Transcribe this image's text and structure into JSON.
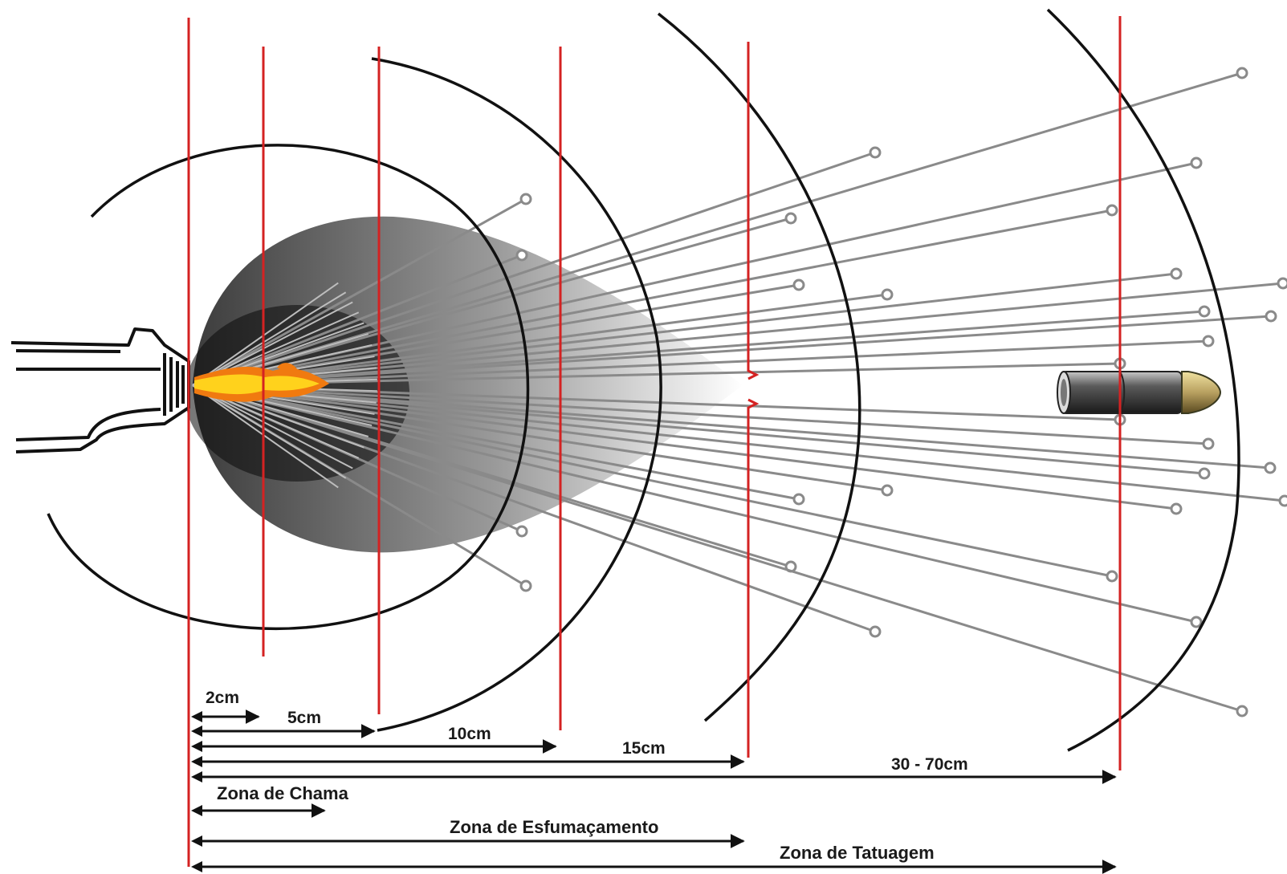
{
  "colors": {
    "background": "#ffffff",
    "distance_marker": "#d42222",
    "arc": "#111111",
    "particle": "#8a8a8a",
    "flame_yellow": "#ffd21c",
    "flame_orange": "#f07a10",
    "bullet_tip": "#b8a060",
    "bullet_casing": "#505050"
  },
  "distances": [
    {
      "label": "2cm"
    },
    {
      "label": "5cm"
    },
    {
      "label": "10cm"
    },
    {
      "label": "15cm"
    },
    {
      "label": "30 - 70cm"
    }
  ],
  "zones": [
    {
      "label": "Zona de Chama"
    },
    {
      "label": "Zona de Esfumaçamento"
    },
    {
      "label": "Zona de Tatuagem"
    }
  ],
  "icons": {
    "firearm": "firearm-muzzle-icon",
    "flame": "muzzle-flame-icon",
    "smoke": "smoke-cloud-icon",
    "bullet": "bullet-icon",
    "particle": "gunpowder-particle-icon"
  }
}
